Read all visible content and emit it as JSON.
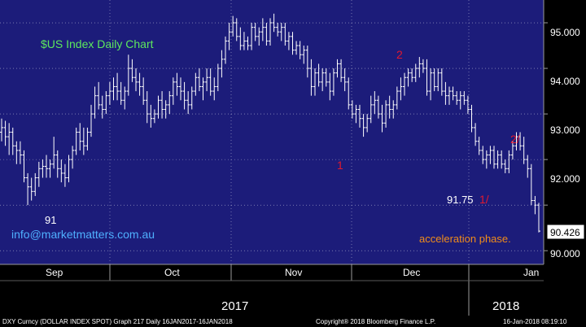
{
  "chart_data": {
    "type": "ohlc",
    "title": "$US Index Daily Chart",
    "watermark": "info@marketmatters.com.au",
    "last_price": "90.426",
    "y_ticks": [
      "95.000",
      "94.000",
      "93.000",
      "92.000",
      "91.000",
      "90.000"
    ],
    "ylim": [
      89.7,
      95.5
    ],
    "x_months": [
      "Sep",
      "Oct",
      "Nov",
      "Dec",
      "Jan"
    ],
    "x_years": [
      "2017",
      "2018"
    ],
    "annotations": {
      "low_sep": "91",
      "wave_1": "1",
      "wave_2": "2",
      "level_label": "91.75",
      "wave_1_prime": "1/",
      "wave_2_prime": "2/",
      "phase_note": "acceleration phase."
    },
    "footer": {
      "left": "DXY Curncy (DOLLAR INDEX SPOT) Graph 217  Daily 16JAN2017-16JAN2018",
      "center": "Copyright® 2018 Bloomberg Finance L.P.",
      "right": "16-Jan-2018 08:19:10"
    },
    "colors": {
      "background": "#1c1c7a",
      "title": "#5de85d",
      "watermark": "#4fb0ff",
      "annotation_red": "#e0192f",
      "annotation_orange": "#f08c1a",
      "bars": "#ffffff"
    },
    "series": [
      {
        "ohlc": [
          [
            92.6,
            92.9,
            92.4,
            92.7
          ],
          [
            92.7,
            92.85,
            92.3,
            92.5
          ],
          [
            92.5,
            92.8,
            92.1,
            92.6
          ],
          [
            92.6,
            92.7,
            92.1,
            92.3
          ],
          [
            92.3,
            92.4,
            91.9,
            92.2
          ],
          [
            92.2,
            92.4,
            91.9,
            92.1
          ],
          [
            92.1,
            92.2,
            91.5,
            91.6
          ],
          [
            91.6,
            91.7,
            91.0,
            91.4
          ],
          [
            91.4,
            91.6,
            91.1,
            91.3
          ],
          [
            91.3,
            91.7,
            91.2,
            91.6
          ],
          [
            91.6,
            91.95,
            91.4,
            91.8
          ],
          [
            91.8,
            92.0,
            91.6,
            91.85
          ],
          [
            91.85,
            92.1,
            91.6,
            91.8
          ],
          [
            91.8,
            92.0,
            91.6,
            91.9
          ],
          [
            91.9,
            92.5,
            91.8,
            92.1
          ],
          [
            92.1,
            92.2,
            91.6,
            91.8
          ],
          [
            91.8,
            92.0,
            91.5,
            91.7
          ],
          [
            91.7,
            91.9,
            91.4,
            91.6
          ],
          [
            91.6,
            92.1,
            91.5,
            92.0
          ],
          [
            92.0,
            92.3,
            91.8,
            92.2
          ],
          [
            92.2,
            92.7,
            92.1,
            92.6
          ],
          [
            92.6,
            92.8,
            92.2,
            92.4
          ],
          [
            92.4,
            92.7,
            92.1,
            92.3
          ],
          [
            92.3,
            92.7,
            92.2,
            92.6
          ],
          [
            92.6,
            93.2,
            92.5,
            93.0
          ],
          [
            93.0,
            93.6,
            92.9,
            93.4
          ],
          [
            93.4,
            93.7,
            93.1,
            93.2
          ],
          [
            93.2,
            93.4,
            92.9,
            93.1
          ],
          [
            93.1,
            93.5,
            93.0,
            93.4
          ],
          [
            93.4,
            93.7,
            93.2,
            93.5
          ],
          [
            93.5,
            93.8,
            93.3,
            93.6
          ],
          [
            93.6,
            93.9,
            93.3,
            93.5
          ],
          [
            93.5,
            93.7,
            93.2,
            93.3
          ],
          [
            93.3,
            93.6,
            93.1,
            93.5
          ],
          [
            93.5,
            94.3,
            93.4,
            94.0
          ],
          [
            94.0,
            94.2,
            93.7,
            93.8
          ],
          [
            93.8,
            94.0,
            93.5,
            93.7
          ],
          [
            93.7,
            93.9,
            93.4,
            93.6
          ],
          [
            93.6,
            93.8,
            93.2,
            93.3
          ],
          [
            93.3,
            93.5,
            92.8,
            93.0
          ],
          [
            93.0,
            93.2,
            92.7,
            92.9
          ],
          [
            92.9,
            93.1,
            92.8,
            93.0
          ],
          [
            93.0,
            93.4,
            92.9,
            93.3
          ],
          [
            93.3,
            93.5,
            92.9,
            93.1
          ],
          [
            93.1,
            93.3,
            92.9,
            93.2
          ],
          [
            93.2,
            93.5,
            93.0,
            93.4
          ],
          [
            93.4,
            93.8,
            93.2,
            93.7
          ],
          [
            93.7,
            93.9,
            93.4,
            93.6
          ],
          [
            93.6,
            93.8,
            93.3,
            93.5
          ],
          [
            93.5,
            93.7,
            93.1,
            93.3
          ],
          [
            93.3,
            93.5,
            93.0,
            93.2
          ],
          [
            93.2,
            93.6,
            93.1,
            93.5
          ],
          [
            93.5,
            93.9,
            93.4,
            93.8
          ],
          [
            93.8,
            94.0,
            93.5,
            93.6
          ],
          [
            93.6,
            93.8,
            93.3,
            93.7
          ],
          [
            93.7,
            94.0,
            93.5,
            93.8
          ],
          [
            93.8,
            94.0,
            93.4,
            93.5
          ],
          [
            93.5,
            93.8,
            93.3,
            93.6
          ],
          [
            93.6,
            94.1,
            93.5,
            94.0
          ],
          [
            94.0,
            94.4,
            93.8,
            94.2
          ],
          [
            94.2,
            94.7,
            94.1,
            94.6
          ],
          [
            94.6,
            95.0,
            94.4,
            94.8
          ],
          [
            94.8,
            95.15,
            94.7,
            95.0
          ],
          [
            95.0,
            95.1,
            94.6,
            94.7
          ],
          [
            94.7,
            94.9,
            94.4,
            94.5
          ],
          [
            94.5,
            94.8,
            94.4,
            94.6
          ],
          [
            94.6,
            94.7,
            94.4,
            94.5
          ],
          [
            94.5,
            95.0,
            94.4,
            94.9
          ],
          [
            94.9,
            95.0,
            94.6,
            94.7
          ],
          [
            94.7,
            94.9,
            94.5,
            94.8
          ],
          [
            94.8,
            95.1,
            94.6,
            94.9
          ],
          [
            94.9,
            95.0,
            94.5,
            94.6
          ],
          [
            94.6,
            95.1,
            94.5,
            95.0
          ],
          [
            95.0,
            95.2,
            94.8,
            94.9
          ],
          [
            94.9,
            95.0,
            94.7,
            94.8
          ],
          [
            94.8,
            95.0,
            94.6,
            94.9
          ],
          [
            94.9,
            95.0,
            94.5,
            94.6
          ],
          [
            94.6,
            94.8,
            94.4,
            94.7
          ],
          [
            94.7,
            94.8,
            94.3,
            94.4
          ],
          [
            94.4,
            94.6,
            94.3,
            94.5
          ],
          [
            94.5,
            94.6,
            94.2,
            94.3
          ],
          [
            94.3,
            94.5,
            94.1,
            94.4
          ],
          [
            94.4,
            94.5,
            93.8,
            94.0
          ],
          [
            94.0,
            94.2,
            93.4,
            93.6
          ],
          [
            93.6,
            94.0,
            93.4,
            93.9
          ],
          [
            93.9,
            94.1,
            93.6,
            93.7
          ],
          [
            93.7,
            94.0,
            93.5,
            93.9
          ],
          [
            93.9,
            94.0,
            93.6,
            93.7
          ],
          [
            93.7,
            93.9,
            93.3,
            93.5
          ],
          [
            93.5,
            94.0,
            93.4,
            93.9
          ],
          [
            93.9,
            94.2,
            93.8,
            94.1
          ],
          [
            94.1,
            94.2,
            93.7,
            93.8
          ],
          [
            93.8,
            94.0,
            93.5,
            93.7
          ],
          [
            93.7,
            93.8,
            93.1,
            93.2
          ],
          [
            93.2,
            93.3,
            92.9,
            93.0
          ],
          [
            93.0,
            93.2,
            92.8,
            93.1
          ],
          [
            93.1,
            93.2,
            92.7,
            92.9
          ],
          [
            92.9,
            93.0,
            92.5,
            92.7
          ],
          [
            92.7,
            93.0,
            92.6,
            92.9
          ],
          [
            92.9,
            93.4,
            92.8,
            93.2
          ],
          [
            93.2,
            93.5,
            93.0,
            93.3
          ],
          [
            93.3,
            93.4,
            92.9,
            93.0
          ],
          [
            93.0,
            93.2,
            92.6,
            92.8
          ],
          [
            92.8,
            93.3,
            92.7,
            93.2
          ],
          [
            93.2,
            93.4,
            92.9,
            93.1
          ],
          [
            93.1,
            93.3,
            92.9,
            93.2
          ],
          [
            93.2,
            93.6,
            93.1,
            93.5
          ],
          [
            93.5,
            93.8,
            93.3,
            93.6
          ],
          [
            93.6,
            93.9,
            93.4,
            93.8
          ],
          [
            93.8,
            94.0,
            93.6,
            93.9
          ],
          [
            93.9,
            94.0,
            93.7,
            93.8
          ],
          [
            93.8,
            94.1,
            93.7,
            94.0
          ],
          [
            94.0,
            94.25,
            93.8,
            94.1
          ],
          [
            94.1,
            94.2,
            93.9,
            94.0
          ],
          [
            94.0,
            94.2,
            93.4,
            93.5
          ],
          [
            93.5,
            94.0,
            93.3,
            93.9
          ],
          [
            93.9,
            94.0,
            93.5,
            93.6
          ],
          [
            93.6,
            94.0,
            93.5,
            93.9
          ],
          [
            93.9,
            94.0,
            93.4,
            93.5
          ],
          [
            93.5,
            93.7,
            93.2,
            93.4
          ],
          [
            93.4,
            93.6,
            93.2,
            93.5
          ],
          [
            93.5,
            93.6,
            93.3,
            93.4
          ],
          [
            93.4,
            93.5,
            93.2,
            93.3
          ],
          [
            93.3,
            93.5,
            93.1,
            93.4
          ],
          [
            93.4,
            93.5,
            93.2,
            93.3
          ],
          [
            93.3,
            93.4,
            93.0,
            93.1
          ],
          [
            93.1,
            93.2,
            92.6,
            92.7
          ],
          [
            92.7,
            92.8,
            92.3,
            92.4
          ],
          [
            92.4,
            92.5,
            92.1,
            92.2
          ],
          [
            92.2,
            92.3,
            91.9,
            92.0
          ],
          [
            92.0,
            92.2,
            91.8,
            92.1
          ],
          [
            92.1,
            92.3,
            91.9,
            92.2
          ],
          [
            92.2,
            92.3,
            91.8,
            91.9
          ],
          [
            91.9,
            92.2,
            91.8,
            92.1
          ],
          [
            92.1,
            92.2,
            91.8,
            91.9
          ],
          [
            91.9,
            92.0,
            91.7,
            91.8
          ],
          [
            91.8,
            92.2,
            91.7,
            92.1
          ],
          [
            92.1,
            92.4,
            92.0,
            92.3
          ],
          [
            92.3,
            92.6,
            92.2,
            92.5
          ],
          [
            92.5,
            92.6,
            92.2,
            92.3
          ],
          [
            92.3,
            92.5,
            91.9,
            92.0
          ],
          [
            92.0,
            92.1,
            91.6,
            91.8
          ],
          [
            91.8,
            91.9,
            91.0,
            91.1
          ],
          [
            91.1,
            91.2,
            90.8,
            91.0
          ],
          [
            91.0,
            91.05,
            90.4,
            90.43
          ]
        ]
      }
    ]
  }
}
